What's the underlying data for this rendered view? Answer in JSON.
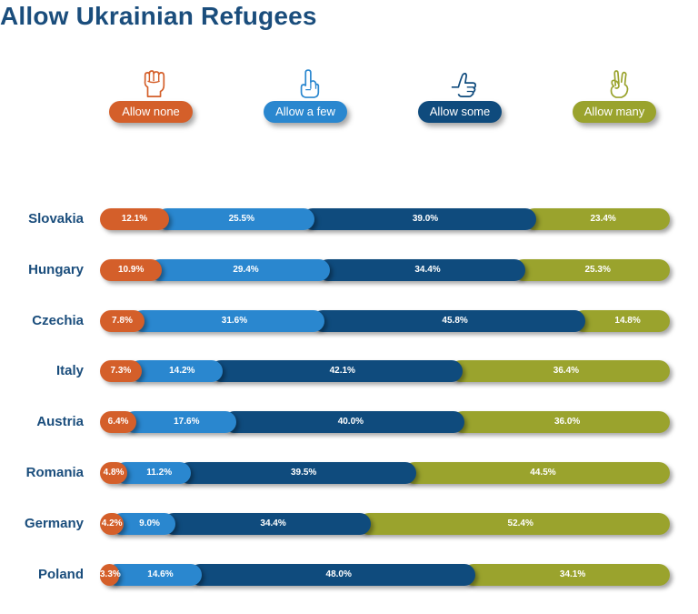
{
  "chart_data": {
    "type": "bar",
    "orientation": "horizontal-stacked-100",
    "title": "Allow Ukrainian Refugees",
    "categories": [
      "Slovakia",
      "Hungary",
      "Czechia",
      "Italy",
      "Austria",
      "Romania",
      "Germany",
      "Poland"
    ],
    "series": [
      {
        "name": "Allow none",
        "color": "#d45f2a",
        "icon": "raised-fist-icon",
        "values": [
          12.1,
          10.9,
          7.8,
          7.3,
          6.4,
          4.8,
          4.2,
          3.3
        ],
        "labels": [
          "12.1%",
          "10.9%",
          "7.8%",
          "7.3%",
          "6.4%",
          "4.8%",
          "4.2%",
          "3.3%"
        ]
      },
      {
        "name": "Allow a few",
        "color": "#2a87cf",
        "icon": "index-finger-up-icon",
        "values": [
          25.5,
          29.4,
          31.6,
          14.2,
          17.6,
          11.2,
          9.0,
          14.6
        ],
        "labels": [
          "25.5%",
          "29.4%",
          "31.6%",
          "14.2%",
          "17.6%",
          "11.2%",
          "9.0%",
          "14.6%"
        ]
      },
      {
        "name": "Allow some",
        "color": "#0f4b7d",
        "icon": "thumbs-up-icon",
        "values": [
          39.0,
          34.4,
          45.8,
          42.1,
          40.0,
          39.5,
          34.4,
          48.0
        ],
        "labels": [
          "39.0%",
          "34.4%",
          "45.8%",
          "42.1%",
          "40.0%",
          "39.5%",
          "34.4%",
          "48.0%"
        ]
      },
      {
        "name": "Allow many",
        "color": "#9aa32d",
        "icon": "ok-hand-icon",
        "values": [
          23.4,
          25.3,
          14.8,
          36.4,
          36.0,
          44.5,
          52.4,
          34.1
        ],
        "labels": [
          "23.4%",
          "25.3%",
          "14.8%",
          "36.4%",
          "36.0%",
          "44.5%",
          "52.4%",
          "34.1%"
        ]
      }
    ],
    "xlim": [
      0,
      100
    ],
    "legend_position": "top",
    "grid": false
  }
}
